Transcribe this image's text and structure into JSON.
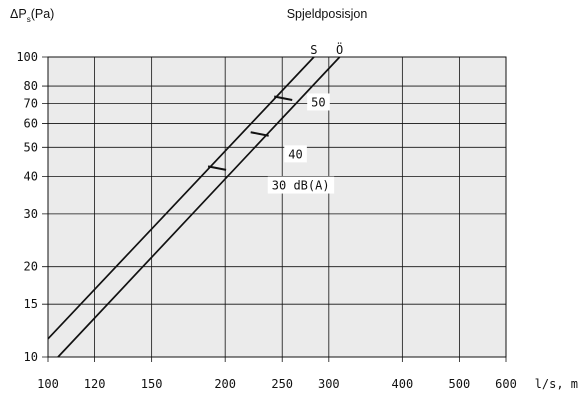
{
  "chart_data": {
    "type": "line",
    "title": "Spjeldposisjon",
    "ylabel_main": "ΔP",
    "ylabel_sub": "s",
    "ylabel_unit": "(Pa)",
    "xlabel": "l/s, m",
    "x_scale": "log",
    "y_scale": "log",
    "xlim": [
      100,
      600
    ],
    "ylim": [
      10,
      100
    ],
    "x_ticks": [
      100,
      120,
      150,
      200,
      250,
      300,
      400,
      500,
      600
    ],
    "y_ticks": [
      10,
      15,
      20,
      30,
      40,
      50,
      60,
      70,
      80,
      100
    ],
    "grid": true,
    "colors": {
      "background": "#ffffff",
      "plot_area": "#ebebeb",
      "line": "#111111",
      "grid": "#111111"
    },
    "series": [
      {
        "name": "S",
        "points": [
          [
            100,
            11.5
          ],
          [
            283,
            100
          ]
        ]
      },
      {
        "name": "Ö",
        "points": [
          [
            104,
            10
          ],
          [
            313,
            100
          ]
        ]
      }
    ],
    "annotations": [
      {
        "text": "50",
        "x": 250,
        "y": 73,
        "label_x": 280,
        "label_y": 70
      },
      {
        "text": "40",
        "x": 228,
        "y": 55.5,
        "label_x": 256,
        "label_y": 47
      },
      {
        "text": "30 dB(A)",
        "x": 193,
        "y": 42.7,
        "label_x": 240,
        "label_y": 37
      }
    ]
  }
}
